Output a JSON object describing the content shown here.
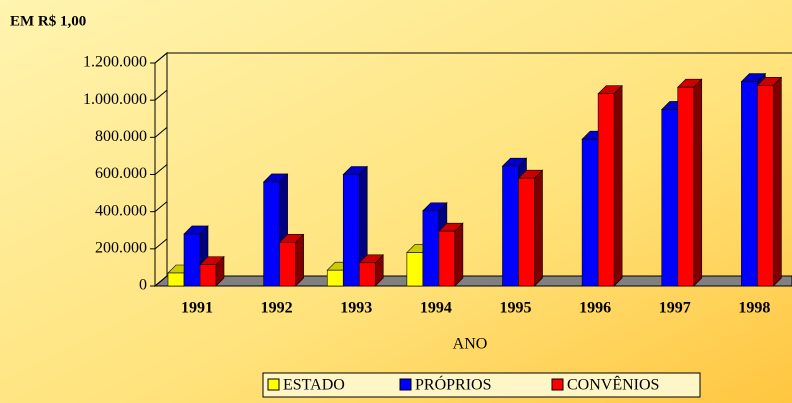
{
  "chart_data": {
    "type": "bar3d",
    "title": "EM R$ 1,00",
    "x_label": "ANO",
    "categories": [
      "1991",
      "1992",
      "1993",
      "1994",
      "1995",
      "1996",
      "1997",
      "1998"
    ],
    "series": [
      {
        "name": "ESTADO",
        "color": "#ffff00",
        "values": [
          70000,
          null,
          85000,
          180000,
          null,
          null,
          null,
          null
        ]
      },
      {
        "name": "PRÓPRIOS",
        "color": "#0000ff",
        "values": [
          280000,
          560000,
          600000,
          405000,
          645000,
          790000,
          950000,
          1100000
        ]
      },
      {
        "name": "CONVÊNIOS",
        "color": "#ff0000",
        "values": [
          115000,
          235000,
          125000,
          295000,
          580000,
          1035000,
          1070000,
          1080000
        ]
      }
    ],
    "ylim": [
      0,
      1200000
    ],
    "yticks": [
      0,
      {
        "value": 200000,
        "label": "200.000"
      },
      {
        "value": 400000,
        "label": "400.000"
      },
      {
        "value": 600000,
        "label": "600.000"
      },
      {
        "value": 800000,
        "label": "800.000"
      },
      {
        "value": 1000000,
        "label": "1.000.000"
      },
      {
        "value": 1200000,
        "label": "1.200.000"
      }
    ],
    "legend": "bottom"
  }
}
